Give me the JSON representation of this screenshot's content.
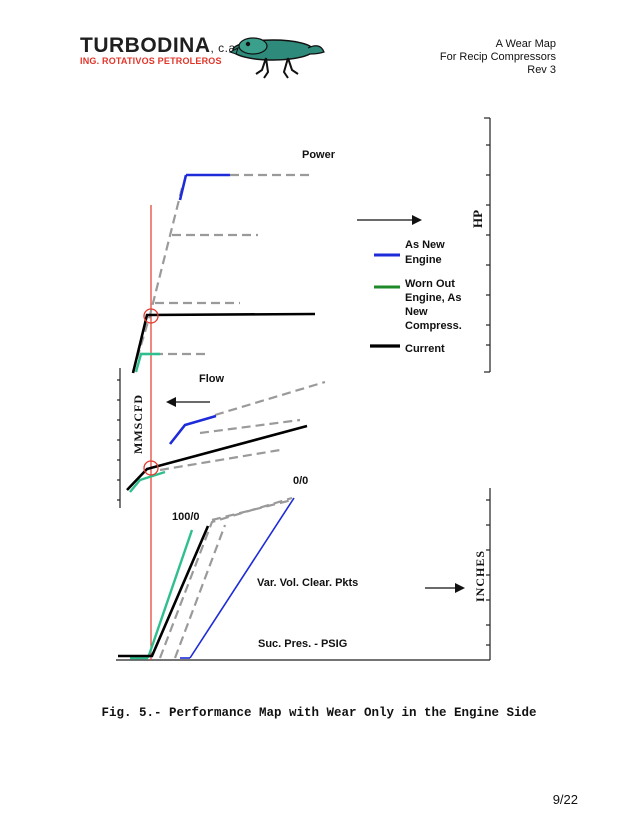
{
  "header": {
    "company": "TURBODINA",
    "company_suffix": ", c.a.",
    "subtitle": "ING. ROTATIVOS PETROLEROS",
    "doc_title_1": "A Wear Map",
    "doc_title_2": "For Recip Compressors",
    "doc_rev": "Rev 3"
  },
  "figure": {
    "label_power": "Power",
    "label_flow": "Flow",
    "axis_hp": "HP",
    "axis_mmscfd": "MMSCFD",
    "axis_inches": "INCHES",
    "label_100_0": "100/0",
    "label_0_0": "0/0",
    "label_vvcp": "Var. Vol. Clear. Pkts",
    "label_suc": "Suc. Pres. - PSIG",
    "legend": [
      {
        "text_lines": [
          "As New",
          "Engine"
        ],
        "color": "#1e2bd8"
      },
      {
        "text_lines": [
          "Worn Out",
          "Engine, As",
          "New",
          "Compress."
        ],
        "color": "#1f8a2a"
      },
      {
        "text_lines": [
          "Current"
        ],
        "color": "#000000"
      }
    ],
    "colors": {
      "blue": "#1e2bd8",
      "teal": "#2fbf8f",
      "green": "#1f8a2a",
      "gray": "#9a9a9a",
      "red": "#e23b2e",
      "black": "#000000"
    }
  },
  "caption": "Fig. 5.- Performance Map with Wear Only in the Engine Side",
  "page": "9/22"
}
